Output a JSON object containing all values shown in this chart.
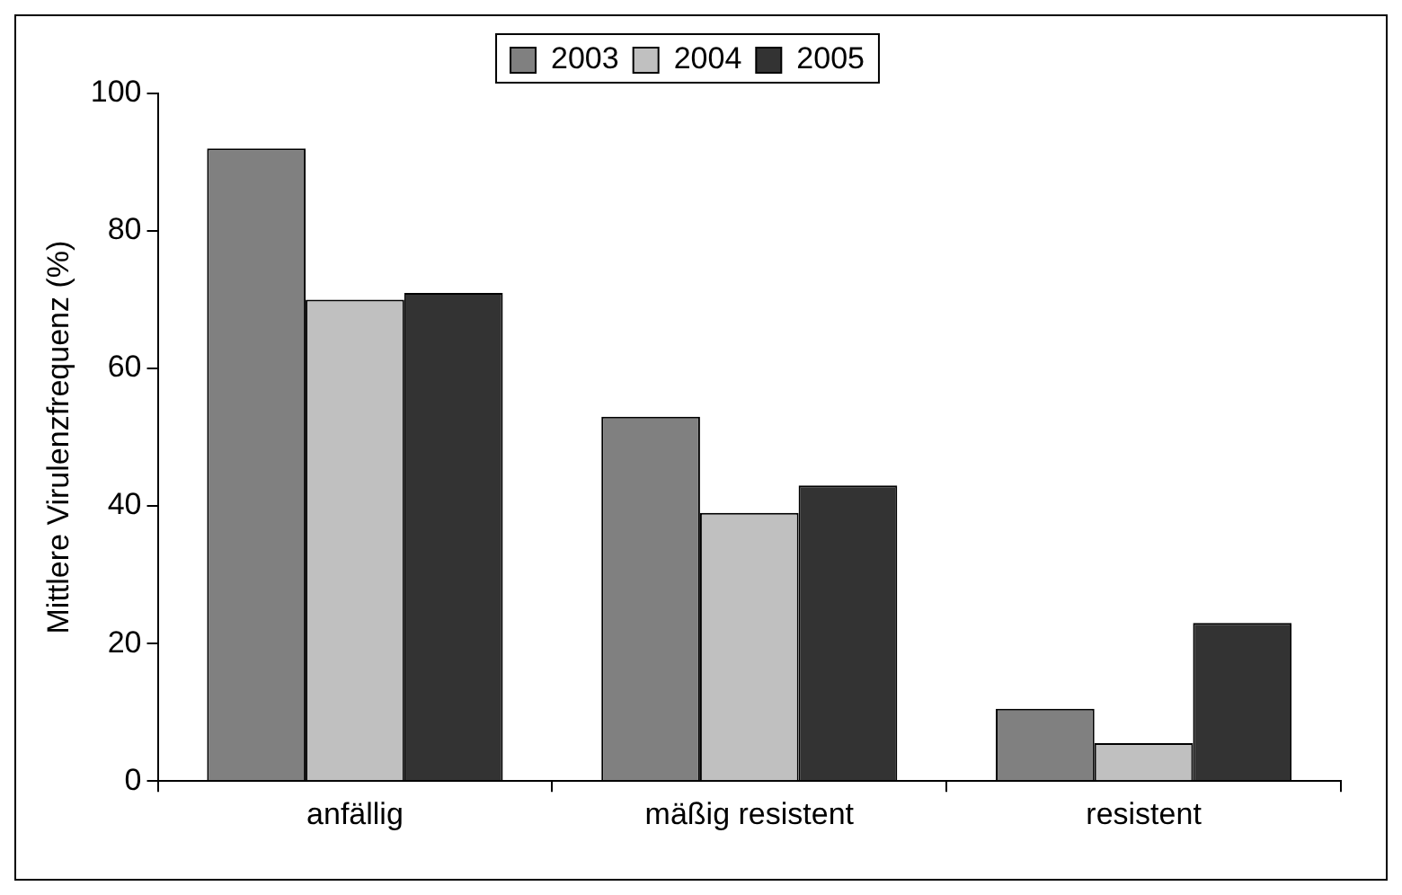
{
  "chart_data": {
    "type": "bar",
    "ylabel": "Mittlere Virulenzfrequenz (%)",
    "categories": [
      "anfällig",
      "mäßig resistent",
      "resistent"
    ],
    "series": [
      {
        "name": "2003",
        "color": "#808080",
        "values": [
          92,
          53,
          10.5
        ]
      },
      {
        "name": "2004",
        "color": "#c0c0c0",
        "values": [
          70,
          39,
          5.5
        ]
      },
      {
        "name": "2005",
        "color": "#333333",
        "values": [
          71,
          43,
          23
        ]
      }
    ],
    "ylim": [
      0,
      100
    ],
    "yticks": [
      0,
      20,
      40,
      60,
      80,
      100
    ],
    "grid": false,
    "legend": "top"
  }
}
